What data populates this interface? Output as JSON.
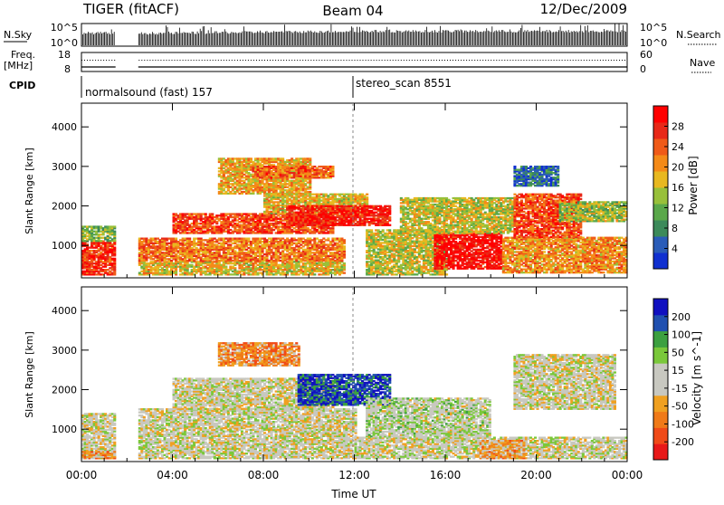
{
  "header": {
    "station": "TIGER (fitACF)",
    "beam": "Beam 04",
    "date": "12/Dec/2009"
  },
  "top_panels": {
    "nsky_label": "N.Sky",
    "nsearch_label": "N.Search",
    "nsearch_ticks": [
      "10^5",
      "10^0"
    ],
    "nsky_ticks": [
      "10^5",
      "10^0"
    ],
    "freq_label_1": "Freq.",
    "freq_label_2": "[MHz]",
    "freq_ticks": [
      "18",
      "8"
    ],
    "nave_label": "Nave",
    "nave_ticks": [
      "60",
      "0"
    ],
    "cpid_label": "CPID",
    "cpid_segments": [
      {
        "text": "normalsound (fast) 157",
        "start_hour": 0
      },
      {
        "text": "stereo_scan 8551",
        "start_hour": 12
      }
    ]
  },
  "chart_data": [
    {
      "type": "heatmap",
      "name": "power",
      "xlabel": "Time UT",
      "ylabel": "Slant Range [km]",
      "xlim": [
        0,
        24
      ],
      "ylim": [
        180,
        4600
      ],
      "yticks": [
        1000,
        2000,
        3000,
        4000
      ],
      "colorbar": {
        "label": "Power [dB]",
        "ticks": [
          4,
          8,
          12,
          16,
          20,
          24,
          28
        ],
        "range": [
          0,
          32
        ],
        "colors": [
          "#1030d0",
          "#2a5cb8",
          "#3c8a5a",
          "#5aa84a",
          "#98c03a",
          "#e8b820",
          "#f48a18",
          "#f05a18",
          "#e82818",
          "#ff0000"
        ]
      },
      "data_gaps_hours": [
        [
          1.5,
          2.5
        ]
      ],
      "regions": [
        {
          "t0": 0.0,
          "t1": 1.5,
          "r0": 250,
          "r1": 1100,
          "level": 0.85
        },
        {
          "t0": 0.0,
          "t1": 1.5,
          "r0": 1100,
          "r1": 1500,
          "level": 0.4
        },
        {
          "t0": 2.5,
          "t1": 11.5,
          "r0": 250,
          "r1": 600,
          "level": 0.55
        },
        {
          "t0": 2.5,
          "t1": 11.5,
          "r0": 600,
          "r1": 1200,
          "level": 0.7
        },
        {
          "t0": 4.0,
          "t1": 11.0,
          "r0": 1300,
          "r1": 1800,
          "level": 0.8
        },
        {
          "t0": 6.0,
          "t1": 10.0,
          "r0": 2300,
          "r1": 3200,
          "level": 0.6
        },
        {
          "t0": 7.5,
          "t1": 11.0,
          "r0": 2700,
          "r1": 3000,
          "level": 0.75
        },
        {
          "t0": 8.0,
          "t1": 12.5,
          "r0": 1800,
          "r1": 2300,
          "level": 0.55
        },
        {
          "t0": 9.0,
          "t1": 13.5,
          "r0": 1500,
          "r1": 2000,
          "level": 0.9
        },
        {
          "t0": 12.5,
          "t1": 16.0,
          "r0": 250,
          "r1": 1400,
          "level": 0.5
        },
        {
          "t0": 15.5,
          "t1": 18.5,
          "r0": 400,
          "r1": 1300,
          "level": 0.95
        },
        {
          "t0": 14.0,
          "t1": 19.0,
          "r0": 1300,
          "r1": 2200,
          "level": 0.5
        },
        {
          "t0": 18.5,
          "t1": 24.0,
          "r0": 300,
          "r1": 1200,
          "level": 0.65
        },
        {
          "t0": 19.0,
          "t1": 22.0,
          "r0": 1200,
          "r1": 2300,
          "level": 0.8
        },
        {
          "t0": 19.0,
          "t1": 21.0,
          "r0": 2500,
          "r1": 3000,
          "level": 0.2
        },
        {
          "t0": 21.0,
          "t1": 24.0,
          "r0": 1600,
          "r1": 2100,
          "level": 0.45
        }
      ]
    },
    {
      "type": "heatmap",
      "name": "velocity",
      "xlabel": "Time UT",
      "ylabel": "Slant Range [km]",
      "xlim": [
        0,
        24
      ],
      "ylim": [
        180,
        4600
      ],
      "yticks": [
        1000,
        2000,
        3000,
        4000
      ],
      "xtick_labels": [
        "00:00",
        "04:00",
        "08:00",
        "12:00",
        "16:00",
        "20:00",
        "00:00"
      ],
      "xticks_hours": [
        0,
        4,
        8,
        12,
        16,
        20,
        24
      ],
      "colorbar": {
        "label": "Velocity [m s^-1]",
        "ticks": [
          200,
          100,
          50,
          15,
          -15,
          -50,
          -100,
          -200
        ],
        "range": [
          -250,
          250
        ],
        "colors": [
          "#e81818",
          "#f04a18",
          "#f07a18",
          "#f0a020",
          "#c8c8c0",
          "#c8c8c0",
          "#7ac83a",
          "#3ca040",
          "#2050b0",
          "#1010c0"
        ]
      },
      "data_gaps_hours": [
        [
          1.5,
          2.5
        ]
      ],
      "regions": [
        {
          "t0": 0.0,
          "t1": 1.5,
          "r0": 250,
          "r1": 1400,
          "level": 0.5
        },
        {
          "t0": 2.5,
          "t1": 12.0,
          "r0": 250,
          "r1": 1500,
          "level": 0.5
        },
        {
          "t0": 4.0,
          "t1": 11.0,
          "r0": 1500,
          "r1": 2300,
          "level": 0.5
        },
        {
          "t0": 6.0,
          "t1": 9.5,
          "r0": 2600,
          "r1": 3200,
          "level": 0.3
        },
        {
          "t0": 9.5,
          "t1": 13.5,
          "r0": 1600,
          "r1": 2400,
          "level": 0.88
        },
        {
          "t0": 12.0,
          "t1": 24.0,
          "r0": 250,
          "r1": 800,
          "level": 0.5
        },
        {
          "t0": 12.5,
          "t1": 18.0,
          "r0": 800,
          "r1": 1800,
          "level": 0.55
        },
        {
          "t0": 17.5,
          "t1": 19.5,
          "r0": 250,
          "r1": 700,
          "level": 0.35
        },
        {
          "t0": 19.0,
          "t1": 23.5,
          "r0": 1500,
          "r1": 2900,
          "level": 0.5
        },
        {
          "t0": 0.0,
          "t1": 2.0,
          "r0": 250,
          "r1": 450,
          "level": 0.3
        }
      ]
    }
  ]
}
